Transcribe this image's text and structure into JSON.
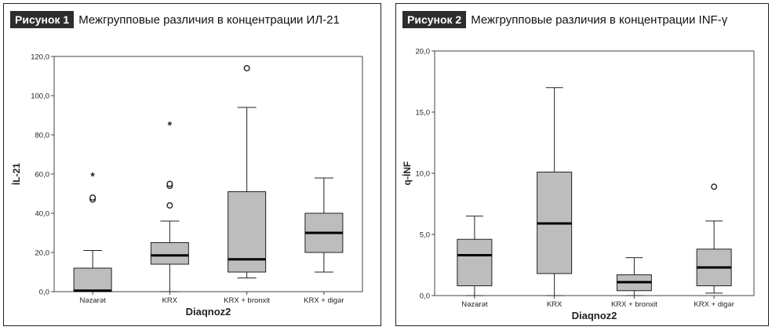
{
  "figure1": {
    "badge": "Рисунок 1",
    "title": "Межгрупповые различия в концентрации ИЛ-21"
  },
  "figure2": {
    "badge": "Рисунок 2",
    "title": "Межгрупповые различия в концентрации INF-γ"
  },
  "chart_data": [
    {
      "type": "boxplot",
      "xlabel": "Diaqnoz2",
      "ylabel": "İL-21",
      "ylim": [
        0,
        120
      ],
      "yticks": [
        0,
        20,
        40,
        60,
        80,
        100,
        120
      ],
      "ytick_labels": [
        "0,0",
        "20,0",
        "40,0",
        "60,0",
        "80,0",
        "100,0",
        "120,0"
      ],
      "categories": [
        "Nəzarət",
        "KRX",
        "KRX + bronxit",
        "KRX + digər"
      ],
      "boxes": [
        {
          "min": 0,
          "q1": 0,
          "median": 0.5,
          "q3": 12,
          "max": 21,
          "outliers": [
            47,
            48
          ],
          "extremes": [
            59
          ]
        },
        {
          "min": 0,
          "q1": 14,
          "median": 18.5,
          "q3": 25,
          "max": 36,
          "outliers": [
            44,
            54,
            55
          ],
          "extremes": [
            85
          ]
        },
        {
          "min": 7,
          "q1": 10,
          "median": 16.5,
          "q3": 51,
          "max": 94,
          "outliers": [
            114
          ],
          "extremes": []
        },
        {
          "min": 10,
          "q1": 20,
          "median": 30,
          "q3": 40,
          "max": 58,
          "outliers": [],
          "extremes": []
        }
      ],
      "box_color": "#bdbdbd"
    },
    {
      "type": "boxplot",
      "xlabel": "Diaqnoz2",
      "ylabel": "q-İNF",
      "ylim": [
        0,
        20
      ],
      "yticks": [
        0,
        5,
        10,
        15,
        20
      ],
      "ytick_labels": [
        "0,0",
        "5,0",
        "10,0",
        "15,0",
        "20,0"
      ],
      "categories": [
        "Nəzarət",
        "KRX",
        "KRX + bronxit",
        "KRX + digər"
      ],
      "boxes": [
        {
          "min": 0,
          "q1": 0.8,
          "median": 3.3,
          "q3": 4.6,
          "max": 6.5,
          "outliers": [],
          "extremes": []
        },
        {
          "min": 0,
          "q1": 1.8,
          "median": 5.9,
          "q3": 10.1,
          "max": 17,
          "outliers": [],
          "extremes": []
        },
        {
          "min": 0,
          "q1": 0.4,
          "median": 1.1,
          "q3": 1.7,
          "max": 3.1,
          "outliers": [],
          "extremes": []
        },
        {
          "min": 0.2,
          "q1": 0.8,
          "median": 2.3,
          "q3": 3.8,
          "max": 6.1,
          "outliers": [
            8.9
          ],
          "extremes": []
        }
      ],
      "box_color": "#bdbdbd"
    }
  ]
}
